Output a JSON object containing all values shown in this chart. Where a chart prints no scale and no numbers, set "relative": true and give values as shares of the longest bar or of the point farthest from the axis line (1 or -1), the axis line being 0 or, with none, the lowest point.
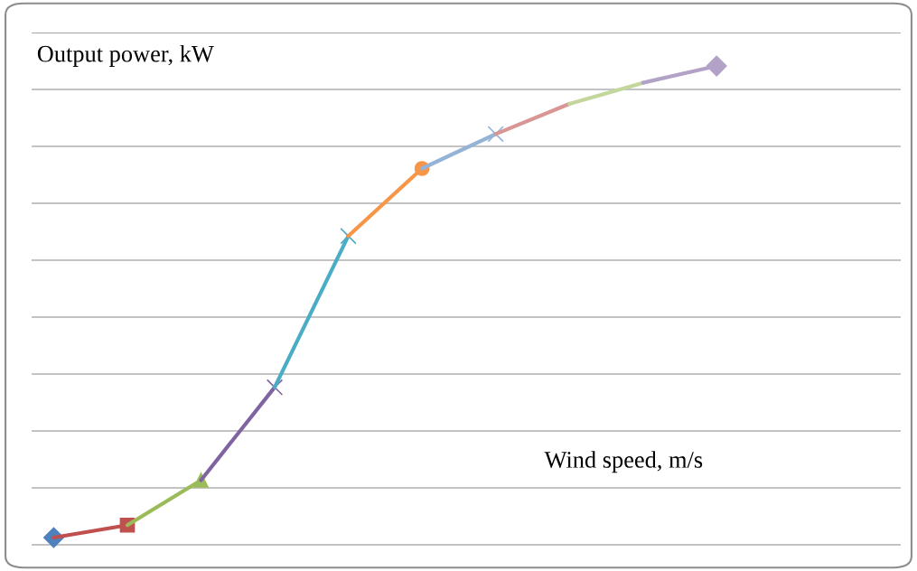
{
  "chart_data": {
    "type": "line",
    "relative": true,
    "xlabel": "Wind speed, m/s",
    "ylabel": "Output power, kW",
    "grid": "y",
    "categories": [
      null,
      null,
      null,
      null,
      null,
      null,
      null,
      null,
      null,
      null
    ],
    "series": [
      {
        "color": "#4f81bd",
        "marker": "diamond",
        "values": [
          0.015,
          null,
          null,
          null,
          null,
          null,
          null,
          null,
          null,
          null
        ]
      },
      {
        "color": "#c0504d",
        "marker": "square",
        "values": [
          0.015,
          0.041,
          null,
          null,
          null,
          null,
          null,
          null,
          null,
          null
        ]
      },
      {
        "color": "#9bbb59",
        "marker": "triangle",
        "values": [
          null,
          0.041,
          0.135,
          null,
          null,
          null,
          null,
          null,
          null,
          null
        ]
      },
      {
        "color": "#8064a2",
        "marker": "cross",
        "values": [
          null,
          null,
          0.135,
          0.329,
          null,
          null,
          null,
          null,
          null,
          null
        ]
      },
      {
        "color": "#4bacc6",
        "marker": "cross",
        "values": [
          null,
          null,
          null,
          0.329,
          0.645,
          null,
          null,
          null,
          null,
          null
        ]
      },
      {
        "color": "#f79646",
        "marker": "circle",
        "values": [
          null,
          null,
          null,
          null,
          0.645,
          0.786,
          null,
          null,
          null,
          null
        ]
      },
      {
        "color": "#95b3d7",
        "marker": "cross",
        "values": [
          null,
          null,
          null,
          null,
          null,
          0.786,
          0.858,
          null,
          null,
          null
        ]
      },
      {
        "color": "#d99694",
        "marker": "none",
        "values": [
          null,
          null,
          null,
          null,
          null,
          null,
          0.858,
          0.921,
          null,
          null
        ]
      },
      {
        "color": "#c3d69b",
        "marker": "none",
        "values": [
          null,
          null,
          null,
          null,
          null,
          null,
          null,
          0.921,
          0.965,
          null
        ]
      },
      {
        "color": "#b3a2c7",
        "marker": "diamond",
        "values": [
          null,
          null,
          null,
          null,
          null,
          null,
          null,
          null,
          0.965,
          1
        ]
      }
    ]
  }
}
